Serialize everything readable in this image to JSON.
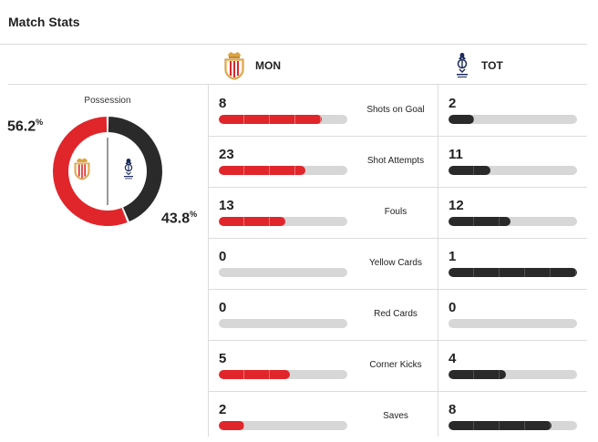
{
  "header": {
    "title": "Match Stats"
  },
  "teams": {
    "home": {
      "abbr": "MON",
      "color": "#e0262b"
    },
    "away": {
      "abbr": "TOT",
      "color": "#2a2a2a"
    }
  },
  "possession": {
    "label": "Possession",
    "home_pct": "56.2",
    "away_pct": "43.8",
    "home_value": 56.2,
    "away_value": 43.8,
    "symbol": "%"
  },
  "stats": [
    {
      "label": "Shots on Goal",
      "home": 8,
      "away": 2
    },
    {
      "label": "Shot Attempts",
      "home": 23,
      "away": 11
    },
    {
      "label": "Fouls",
      "home": 13,
      "away": 12
    },
    {
      "label": "Yellow Cards",
      "home": 0,
      "away": 1
    },
    {
      "label": "Red Cards",
      "home": 0,
      "away": 0
    },
    {
      "label": "Corner Kicks",
      "home": 5,
      "away": 4
    },
    {
      "label": "Saves",
      "home": 2,
      "away": 8
    }
  ]
}
